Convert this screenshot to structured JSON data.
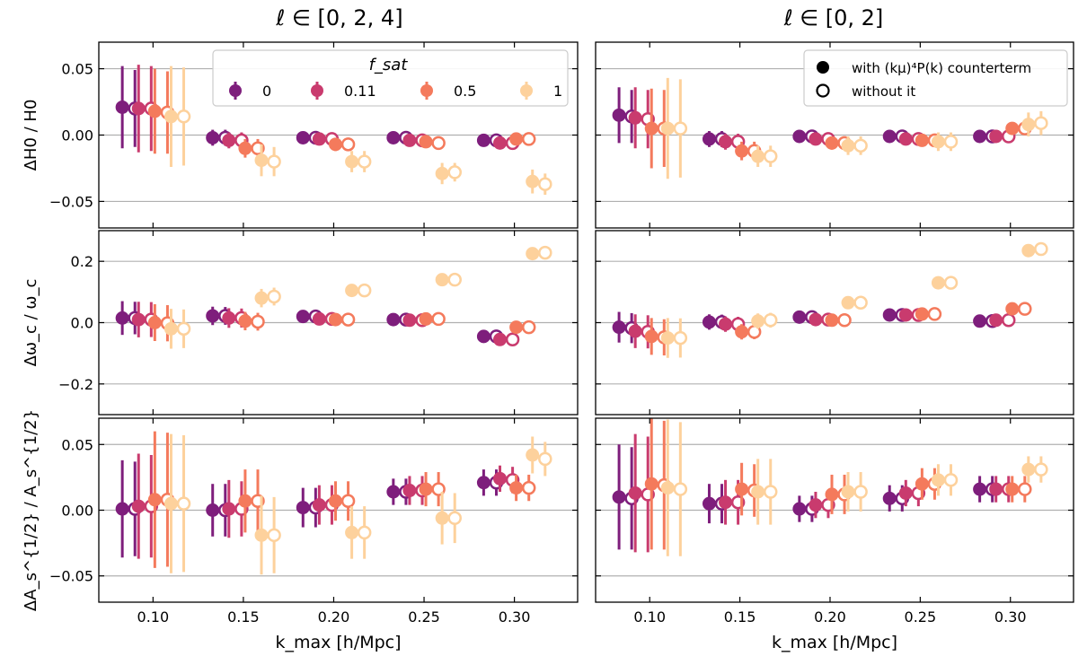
{
  "figure": {
    "col_titles": [
      "ℓ ∈ [0, 2, 4]",
      "ℓ ∈ [0, 2]"
    ],
    "xlabel": "k_max [h/Mpc]",
    "xlabel_main": "k",
    "xlabel_sub": "max",
    "xlabel_unit": "[h/Mpc]",
    "legend_fsat": {
      "title": "f_sat",
      "entries": [
        {
          "label": "0",
          "color": "#7e1e7c"
        },
        {
          "label": "0.11",
          "color": "#c93b6e"
        },
        {
          "label": "0.5",
          "color": "#f47a5c"
        },
        {
          "label": "1",
          "color": "#fdd19c"
        }
      ]
    },
    "legend_marker": {
      "entries": [
        {
          "label": "with (kμ)⁴P(k) counterterm",
          "style": "filled"
        },
        {
          "label": "without it",
          "style": "open"
        }
      ]
    }
  },
  "chart_data": [
    {
      "type": "scatter",
      "panel": "H0, l=[0,2,4]",
      "ylabel": "ΔH0 / H0",
      "ylim": [
        -0.07,
        0.07
      ],
      "yticks": [
        -0.05,
        0.0,
        0.05
      ],
      "ytick_labels": [
        "−0.05",
        "0.00",
        "0.05"
      ],
      "xticks": [
        0.1,
        0.15,
        0.2,
        0.25,
        0.3
      ],
      "xtick_labels": [
        "0.10",
        "0.15",
        "0.20",
        "0.25",
        "0.30"
      ],
      "xlim": [
        0.07,
        0.335
      ],
      "k": [
        0.1,
        0.15,
        0.2,
        0.25,
        0.3
      ],
      "series": [
        {
          "fsat": "0",
          "with_y": [
            0.021,
            -0.002,
            -0.002,
            -0.002,
            -0.004
          ],
          "with_err": [
            0.031,
            0.006,
            0.003,
            0.003,
            0.003
          ],
          "without_y": [
            0.02,
            -0.002,
            -0.002,
            -0.002,
            -0.004
          ],
          "without_err": [
            0.029,
            0.006,
            0.003,
            0.003,
            0.003
          ]
        },
        {
          "fsat": "0.11",
          "with_y": [
            0.02,
            -0.004,
            -0.003,
            -0.004,
            -0.006
          ],
          "with_err": [
            0.033,
            0.006,
            0.003,
            0.003,
            0.003
          ],
          "without_y": [
            0.02,
            -0.004,
            -0.003,
            -0.004,
            -0.006
          ],
          "without_err": [
            0.032,
            0.006,
            0.003,
            0.003,
            0.003
          ]
        },
        {
          "fsat": "0.5",
          "with_y": [
            0.018,
            -0.01,
            -0.007,
            -0.005,
            -0.003
          ],
          "with_err": [
            0.032,
            0.007,
            0.005,
            0.003,
            0.002
          ],
          "without_y": [
            0.017,
            -0.01,
            -0.007,
            -0.006,
            -0.003
          ],
          "without_err": [
            0.031,
            0.007,
            0.005,
            0.003,
            0.002
          ]
        },
        {
          "fsat": "1",
          "with_y": [
            0.014,
            -0.019,
            -0.02,
            -0.029,
            -0.035
          ],
          "with_err": [
            0.038,
            0.012,
            0.008,
            0.008,
            0.009
          ],
          "without_y": [
            0.014,
            -0.02,
            -0.02,
            -0.028,
            -0.037
          ],
          "without_err": [
            0.037,
            0.011,
            0.008,
            0.007,
            0.008
          ]
        }
      ]
    },
    {
      "type": "scatter",
      "panel": "H0, l=[0,2]",
      "ylabel": "",
      "ylim": [
        -0.07,
        0.07
      ],
      "yticks": [
        -0.05,
        0.0,
        0.05
      ],
      "xticks": [
        0.1,
        0.15,
        0.2,
        0.25,
        0.3
      ],
      "xtick_labels": [
        "0.10",
        "0.15",
        "0.20",
        "0.25",
        "0.30"
      ],
      "xlim": [
        0.07,
        0.335
      ],
      "k": [
        0.1,
        0.15,
        0.2,
        0.25,
        0.3
      ],
      "series": [
        {
          "fsat": "0",
          "with_y": [
            0.015,
            -0.003,
            -0.001,
            -0.001,
            -0.001
          ],
          "with_err": [
            0.021,
            0.006,
            0.003,
            0.003,
            0.003
          ],
          "without_y": [
            0.014,
            -0.003,
            -0.001,
            -0.001,
            -0.001
          ],
          "without_err": [
            0.02,
            0.006,
            0.003,
            0.003,
            0.003
          ]
        },
        {
          "fsat": "0.11",
          "with_y": [
            0.013,
            -0.005,
            -0.003,
            -0.003,
            -0.001
          ],
          "with_err": [
            0.023,
            0.006,
            0.003,
            0.003,
            0.003
          ],
          "without_y": [
            0.012,
            -0.005,
            -0.003,
            -0.003,
            -0.001
          ],
          "without_err": [
            0.022,
            0.006,
            0.003,
            0.003,
            0.003
          ]
        },
        {
          "fsat": "0.5",
          "with_y": [
            0.005,
            -0.012,
            -0.006,
            -0.004,
            0.005
          ],
          "with_err": [
            0.03,
            0.007,
            0.005,
            0.004,
            0.004
          ],
          "without_y": [
            0.005,
            -0.012,
            -0.006,
            -0.004,
            0.005
          ],
          "without_err": [
            0.029,
            0.007,
            0.005,
            0.004,
            0.004
          ]
        },
        {
          "fsat": "1",
          "with_y": [
            0.005,
            -0.016,
            -0.008,
            -0.005,
            0.008
          ],
          "with_err": [
            0.038,
            0.008,
            0.007,
            0.007,
            0.009
          ],
          "without_y": [
            0.005,
            -0.016,
            -0.008,
            -0.005,
            0.009
          ],
          "without_err": [
            0.037,
            0.008,
            0.007,
            0.007,
            0.009
          ]
        }
      ]
    },
    {
      "type": "scatter",
      "panel": "omega_c, l=[0,2,4]",
      "ylabel": "Δω_c / ω_c",
      "ylim": [
        -0.3,
        0.3
      ],
      "yticks": [
        -0.2,
        0.0,
        0.2
      ],
      "ytick_labels": [
        "−0.2",
        "0.0",
        "0.2"
      ],
      "xticks": [
        0.1,
        0.15,
        0.2,
        0.25,
        0.3
      ],
      "xlim": [
        0.07,
        0.335
      ],
      "k": [
        0.1,
        0.15,
        0.2,
        0.25,
        0.3
      ],
      "series": [
        {
          "fsat": "0",
          "with_y": [
            0.015,
            0.022,
            0.02,
            0.01,
            -0.045
          ],
          "with_err": [
            0.055,
            0.03,
            0.012,
            0.01,
            0.01
          ],
          "without_y": [
            0.015,
            0.022,
            0.02,
            0.01,
            -0.045
          ],
          "without_err": [
            0.053,
            0.029,
            0.012,
            0.01,
            0.01
          ]
        },
        {
          "fsat": "0.11",
          "with_y": [
            0.01,
            0.015,
            0.012,
            0.008,
            -0.055
          ],
          "with_err": [
            0.058,
            0.032,
            0.012,
            0.01,
            0.01
          ],
          "without_y": [
            0.01,
            0.015,
            0.012,
            0.008,
            -0.055
          ],
          "without_err": [
            0.057,
            0.031,
            0.012,
            0.01,
            0.01
          ]
        },
        {
          "fsat": "0.5",
          "with_y": [
            0.0,
            0.005,
            0.01,
            0.012,
            -0.015
          ],
          "with_err": [
            0.06,
            0.03,
            0.015,
            0.015,
            0.012
          ],
          "without_y": [
            -0.002,
            0.003,
            0.01,
            0.012,
            -0.015
          ],
          "without_err": [
            0.059,
            0.029,
            0.015,
            0.015,
            0.012
          ]
        },
        {
          "fsat": "1",
          "with_y": [
            -0.02,
            0.08,
            0.105,
            0.14,
            0.225
          ],
          "with_err": [
            0.065,
            0.03,
            0.02,
            0.02,
            0.02
          ],
          "without_y": [
            -0.02,
            0.085,
            0.105,
            0.14,
            0.228
          ],
          "without_err": [
            0.063,
            0.029,
            0.02,
            0.02,
            0.02
          ]
        }
      ]
    },
    {
      "type": "scatter",
      "panel": "omega_c, l=[0,2]",
      "ylabel": "",
      "ylim": [
        -0.3,
        0.3
      ],
      "yticks": [
        -0.2,
        0.0,
        0.2
      ],
      "xticks": [
        0.1,
        0.15,
        0.2,
        0.25,
        0.3
      ],
      "xlim": [
        0.07,
        0.335
      ],
      "k": [
        0.1,
        0.15,
        0.2,
        0.25,
        0.3
      ],
      "series": [
        {
          "fsat": "0",
          "with_y": [
            -0.015,
            0.002,
            0.018,
            0.025,
            0.005
          ],
          "with_err": [
            0.05,
            0.025,
            0.015,
            0.015,
            0.012
          ],
          "without_y": [
            -0.018,
            0.002,
            0.018,
            0.025,
            0.005
          ],
          "without_err": [
            0.049,
            0.024,
            0.015,
            0.015,
            0.012
          ]
        },
        {
          "fsat": "0.11",
          "with_y": [
            -0.028,
            -0.005,
            0.01,
            0.025,
            0.008
          ],
          "with_err": [
            0.055,
            0.025,
            0.015,
            0.015,
            0.012
          ],
          "without_y": [
            -0.03,
            -0.005,
            0.01,
            0.025,
            0.008
          ],
          "without_err": [
            0.054,
            0.024,
            0.015,
            0.015,
            0.012
          ]
        },
        {
          "fsat": "0.5",
          "with_y": [
            -0.045,
            -0.03,
            0.008,
            0.028,
            0.045
          ],
          "with_err": [
            0.06,
            0.025,
            0.015,
            0.015,
            0.015
          ],
          "without_y": [
            -0.048,
            -0.03,
            0.008,
            0.028,
            0.045
          ],
          "without_err": [
            0.059,
            0.024,
            0.015,
            0.015,
            0.015
          ]
        },
        {
          "fsat": "1",
          "with_y": [
            -0.05,
            0.005,
            0.065,
            0.13,
            0.235
          ],
          "with_err": [
            0.065,
            0.025,
            0.02,
            0.015,
            0.02
          ],
          "without_y": [
            -0.05,
            0.008,
            0.065,
            0.13,
            0.24
          ],
          "without_err": [
            0.064,
            0.024,
            0.02,
            0.015,
            0.02
          ]
        }
      ]
    },
    {
      "type": "scatter",
      "panel": "As, l=[0,2,4]",
      "ylabel": "ΔA_s^{1/2} / A_s^{1/2}",
      "ylim": [
        -0.07,
        0.07
      ],
      "yticks": [
        -0.05,
        0.0,
        0.05
      ],
      "ytick_labels": [
        "−0.05",
        "0.00",
        "0.05"
      ],
      "xticks": [
        0.1,
        0.15,
        0.2,
        0.25,
        0.3
      ],
      "xtick_labels": [
        "0.10",
        "0.15",
        "0.20",
        "0.25",
        "0.30"
      ],
      "xlim": [
        0.07,
        0.335
      ],
      "k": [
        0.1,
        0.15,
        0.2,
        0.25,
        0.3
      ],
      "series": [
        {
          "fsat": "0",
          "with_y": [
            0.001,
            0.0,
            0.002,
            0.014,
            0.021
          ],
          "with_err": [
            0.037,
            0.02,
            0.015,
            0.01,
            0.01
          ],
          "without_y": [
            0.001,
            0.0,
            0.002,
            0.014,
            0.021
          ],
          "without_err": [
            0.036,
            0.02,
            0.015,
            0.01,
            0.01
          ]
        },
        {
          "fsat": "0.11",
          "with_y": [
            0.003,
            0.001,
            0.004,
            0.015,
            0.024
          ],
          "with_err": [
            0.04,
            0.022,
            0.015,
            0.011,
            0.01
          ],
          "without_y": [
            0.003,
            0.001,
            0.004,
            0.015,
            0.023
          ],
          "without_err": [
            0.039,
            0.021,
            0.015,
            0.011,
            0.01
          ]
        },
        {
          "fsat": "0.5",
          "with_y": [
            0.008,
            0.007,
            0.007,
            0.016,
            0.017
          ],
          "with_err": [
            0.052,
            0.024,
            0.015,
            0.013,
            0.01
          ],
          "without_y": [
            0.008,
            0.007,
            0.007,
            0.016,
            0.017
          ],
          "without_err": [
            0.051,
            0.024,
            0.015,
            0.013,
            0.01
          ]
        },
        {
          "fsat": "1",
          "with_y": [
            0.005,
            -0.019,
            -0.017,
            -0.006,
            0.042
          ],
          "with_err": [
            0.053,
            0.03,
            0.02,
            0.02,
            0.014
          ],
          "without_y": [
            0.005,
            -0.019,
            -0.017,
            -0.006,
            0.039
          ],
          "without_err": [
            0.052,
            0.029,
            0.02,
            0.019,
            0.013
          ]
        }
      ]
    },
    {
      "type": "scatter",
      "panel": "As, l=[0,2]",
      "ylabel": "",
      "ylim": [
        -0.07,
        0.07
      ],
      "yticks": [
        -0.05,
        0.0,
        0.05
      ],
      "xticks": [
        0.1,
        0.15,
        0.2,
        0.25,
        0.3
      ],
      "xtick_labels": [
        "0.10",
        "0.15",
        "0.20",
        "0.25",
        "0.30"
      ],
      "xlim": [
        0.07,
        0.335
      ],
      "k": [
        0.1,
        0.15,
        0.2,
        0.25,
        0.3
      ],
      "series": [
        {
          "fsat": "0",
          "with_y": [
            0.01,
            0.005,
            0.001,
            0.009,
            0.016
          ],
          "with_err": [
            0.04,
            0.015,
            0.01,
            0.01,
            0.01
          ],
          "without_y": [
            0.009,
            0.005,
            0.001,
            0.009,
            0.016
          ],
          "without_err": [
            0.039,
            0.015,
            0.01,
            0.01,
            0.01
          ]
        },
        {
          "fsat": "0.11",
          "with_y": [
            0.013,
            0.006,
            0.004,
            0.013,
            0.016
          ],
          "with_err": [
            0.045,
            0.017,
            0.01,
            0.01,
            0.01
          ],
          "without_y": [
            0.012,
            0.006,
            0.004,
            0.013,
            0.016
          ],
          "without_err": [
            0.044,
            0.017,
            0.01,
            0.01,
            0.01
          ]
        },
        {
          "fsat": "0.5",
          "with_y": [
            0.02,
            0.016,
            0.012,
            0.02,
            0.016
          ],
          "with_err": [
            0.05,
            0.02,
            0.015,
            0.012,
            0.01
          ],
          "without_y": [
            0.019,
            0.015,
            0.012,
            0.02,
            0.016
          ],
          "without_err": [
            0.049,
            0.02,
            0.015,
            0.012,
            0.01
          ]
        },
        {
          "fsat": "1",
          "with_y": [
            0.017,
            0.014,
            0.014,
            0.023,
            0.031
          ],
          "with_err": [
            0.052,
            0.025,
            0.015,
            0.012,
            0.01
          ],
          "without_y": [
            0.016,
            0.014,
            0.014,
            0.023,
            0.031
          ],
          "without_err": [
            0.051,
            0.025,
            0.015,
            0.012,
            0.01
          ]
        }
      ]
    }
  ]
}
